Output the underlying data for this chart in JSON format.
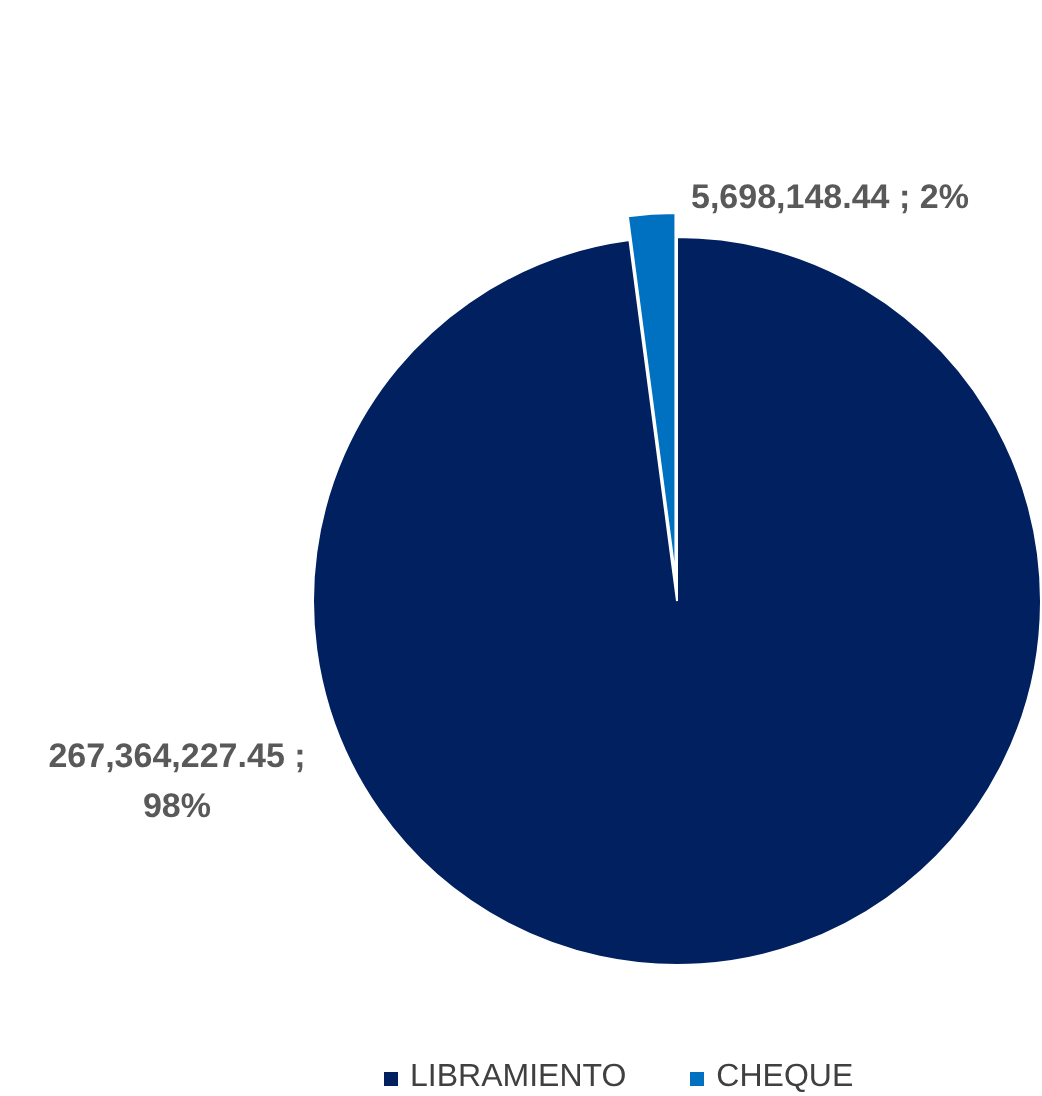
{
  "chart_data": {
    "type": "pie",
    "categories": [
      "LIBRAMIENTO",
      "CHEQUE"
    ],
    "values": [
      267364227.45,
      5698148.44
    ],
    "colors": [
      "#002060",
      "#0070c0"
    ],
    "value_labels": [
      "267,364,227.45 ; 98%",
      "5,698,148.44 ; 2%"
    ],
    "legend": "bottom"
  }
}
